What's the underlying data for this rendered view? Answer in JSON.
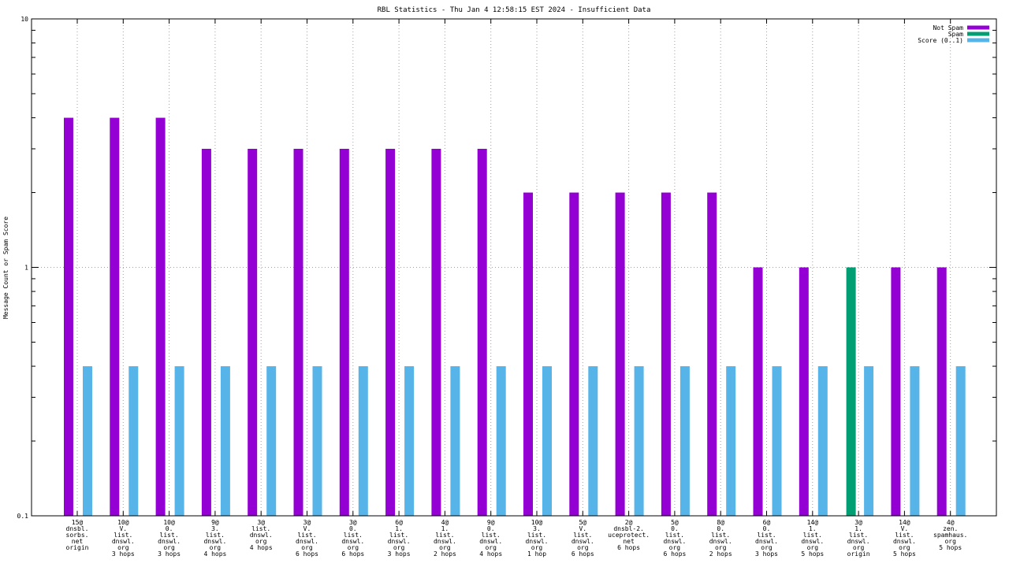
{
  "chart_data": {
    "type": "bar",
    "title": "RBL Statistics - Thu Jan  4 12:58:15 EST 2024 - Insufficient Data",
    "xlabel": "",
    "ylabel": "Message Count or Spam Score",
    "yscale": "log",
    "ylim": [
      0.1,
      10
    ],
    "yticks": [
      {
        "value": 0.1,
        "label": "0.1"
      },
      {
        "value": 1,
        "label": "1"
      },
      {
        "value": 10,
        "label": "10"
      }
    ],
    "grid": true,
    "legend_position": "top-right",
    "categories": [
      [
        "15@",
        "dnsbl.",
        "sorbs.",
        "net",
        "origin"
      ],
      [
        "10@",
        "V.",
        "list.",
        "dnswl.",
        "org",
        "3 hops"
      ],
      [
        "10@",
        "0.",
        "list.",
        "dnswl.",
        "org",
        "3 hops"
      ],
      [
        "9@",
        "3.",
        "list.",
        "dnswl.",
        "org",
        "4 hops"
      ],
      [
        "3@",
        "list.",
        "dnswl.",
        "org",
        "4 hops"
      ],
      [
        "3@",
        "V.",
        "list.",
        "dnswl.",
        "org",
        "6 hops"
      ],
      [
        "3@",
        "0.",
        "list.",
        "dnswl.",
        "org",
        "6 hops"
      ],
      [
        "6@",
        "1.",
        "list.",
        "dnswl.",
        "org",
        "3 hops"
      ],
      [
        "4@",
        "1.",
        "list.",
        "dnswl.",
        "org",
        "2 hops"
      ],
      [
        "9@",
        "0.",
        "list.",
        "dnswl.",
        "org",
        "4 hops"
      ],
      [
        "10@",
        "3.",
        "list.",
        "dnswl.",
        "org",
        "1 hop"
      ],
      [
        "5@",
        "V.",
        "list.",
        "dnswl.",
        "org",
        "6 hops"
      ],
      [
        "2@",
        "dnsbl-2.",
        "uceprotect.",
        "net",
        "6 hops"
      ],
      [
        "5@",
        "0.",
        "list.",
        "dnswl.",
        "org",
        "6 hops"
      ],
      [
        "8@",
        "0.",
        "list.",
        "dnswl.",
        "org",
        "2 hops"
      ],
      [
        "6@",
        "0.",
        "list.",
        "dnswl.",
        "org",
        "3 hops"
      ],
      [
        "14@",
        "1.",
        "list.",
        "dnswl.",
        "org",
        "5 hops"
      ],
      [
        "3@",
        "1.",
        "list.",
        "dnswl.",
        "org",
        "origin"
      ],
      [
        "14@",
        "V.",
        "list.",
        "dnswl.",
        "org",
        "5 hops"
      ],
      [
        "4@",
        "zen.",
        "spamhaus.",
        "org",
        "5 hops"
      ]
    ],
    "series": [
      {
        "name": "Not Spam",
        "color": "#9400d3",
        "values": [
          4,
          4,
          4,
          3,
          3,
          3,
          3,
          3,
          3,
          3,
          2,
          2,
          2,
          2,
          2,
          1,
          1,
          null,
          1,
          1
        ]
      },
      {
        "name": "Spam",
        "color": "#009e73",
        "values": [
          null,
          null,
          null,
          null,
          null,
          null,
          null,
          null,
          null,
          null,
          null,
          null,
          null,
          null,
          null,
          null,
          null,
          1,
          null,
          null
        ]
      },
      {
        "name": "Score (0..1)",
        "color": "#56b4e9",
        "values": [
          0.4,
          0.4,
          0.4,
          0.4,
          0.4,
          0.4,
          0.4,
          0.4,
          0.4,
          0.4,
          0.4,
          0.4,
          0.4,
          0.4,
          0.4,
          0.4,
          0.4,
          0.4,
          0.4,
          0.4
        ]
      }
    ]
  }
}
